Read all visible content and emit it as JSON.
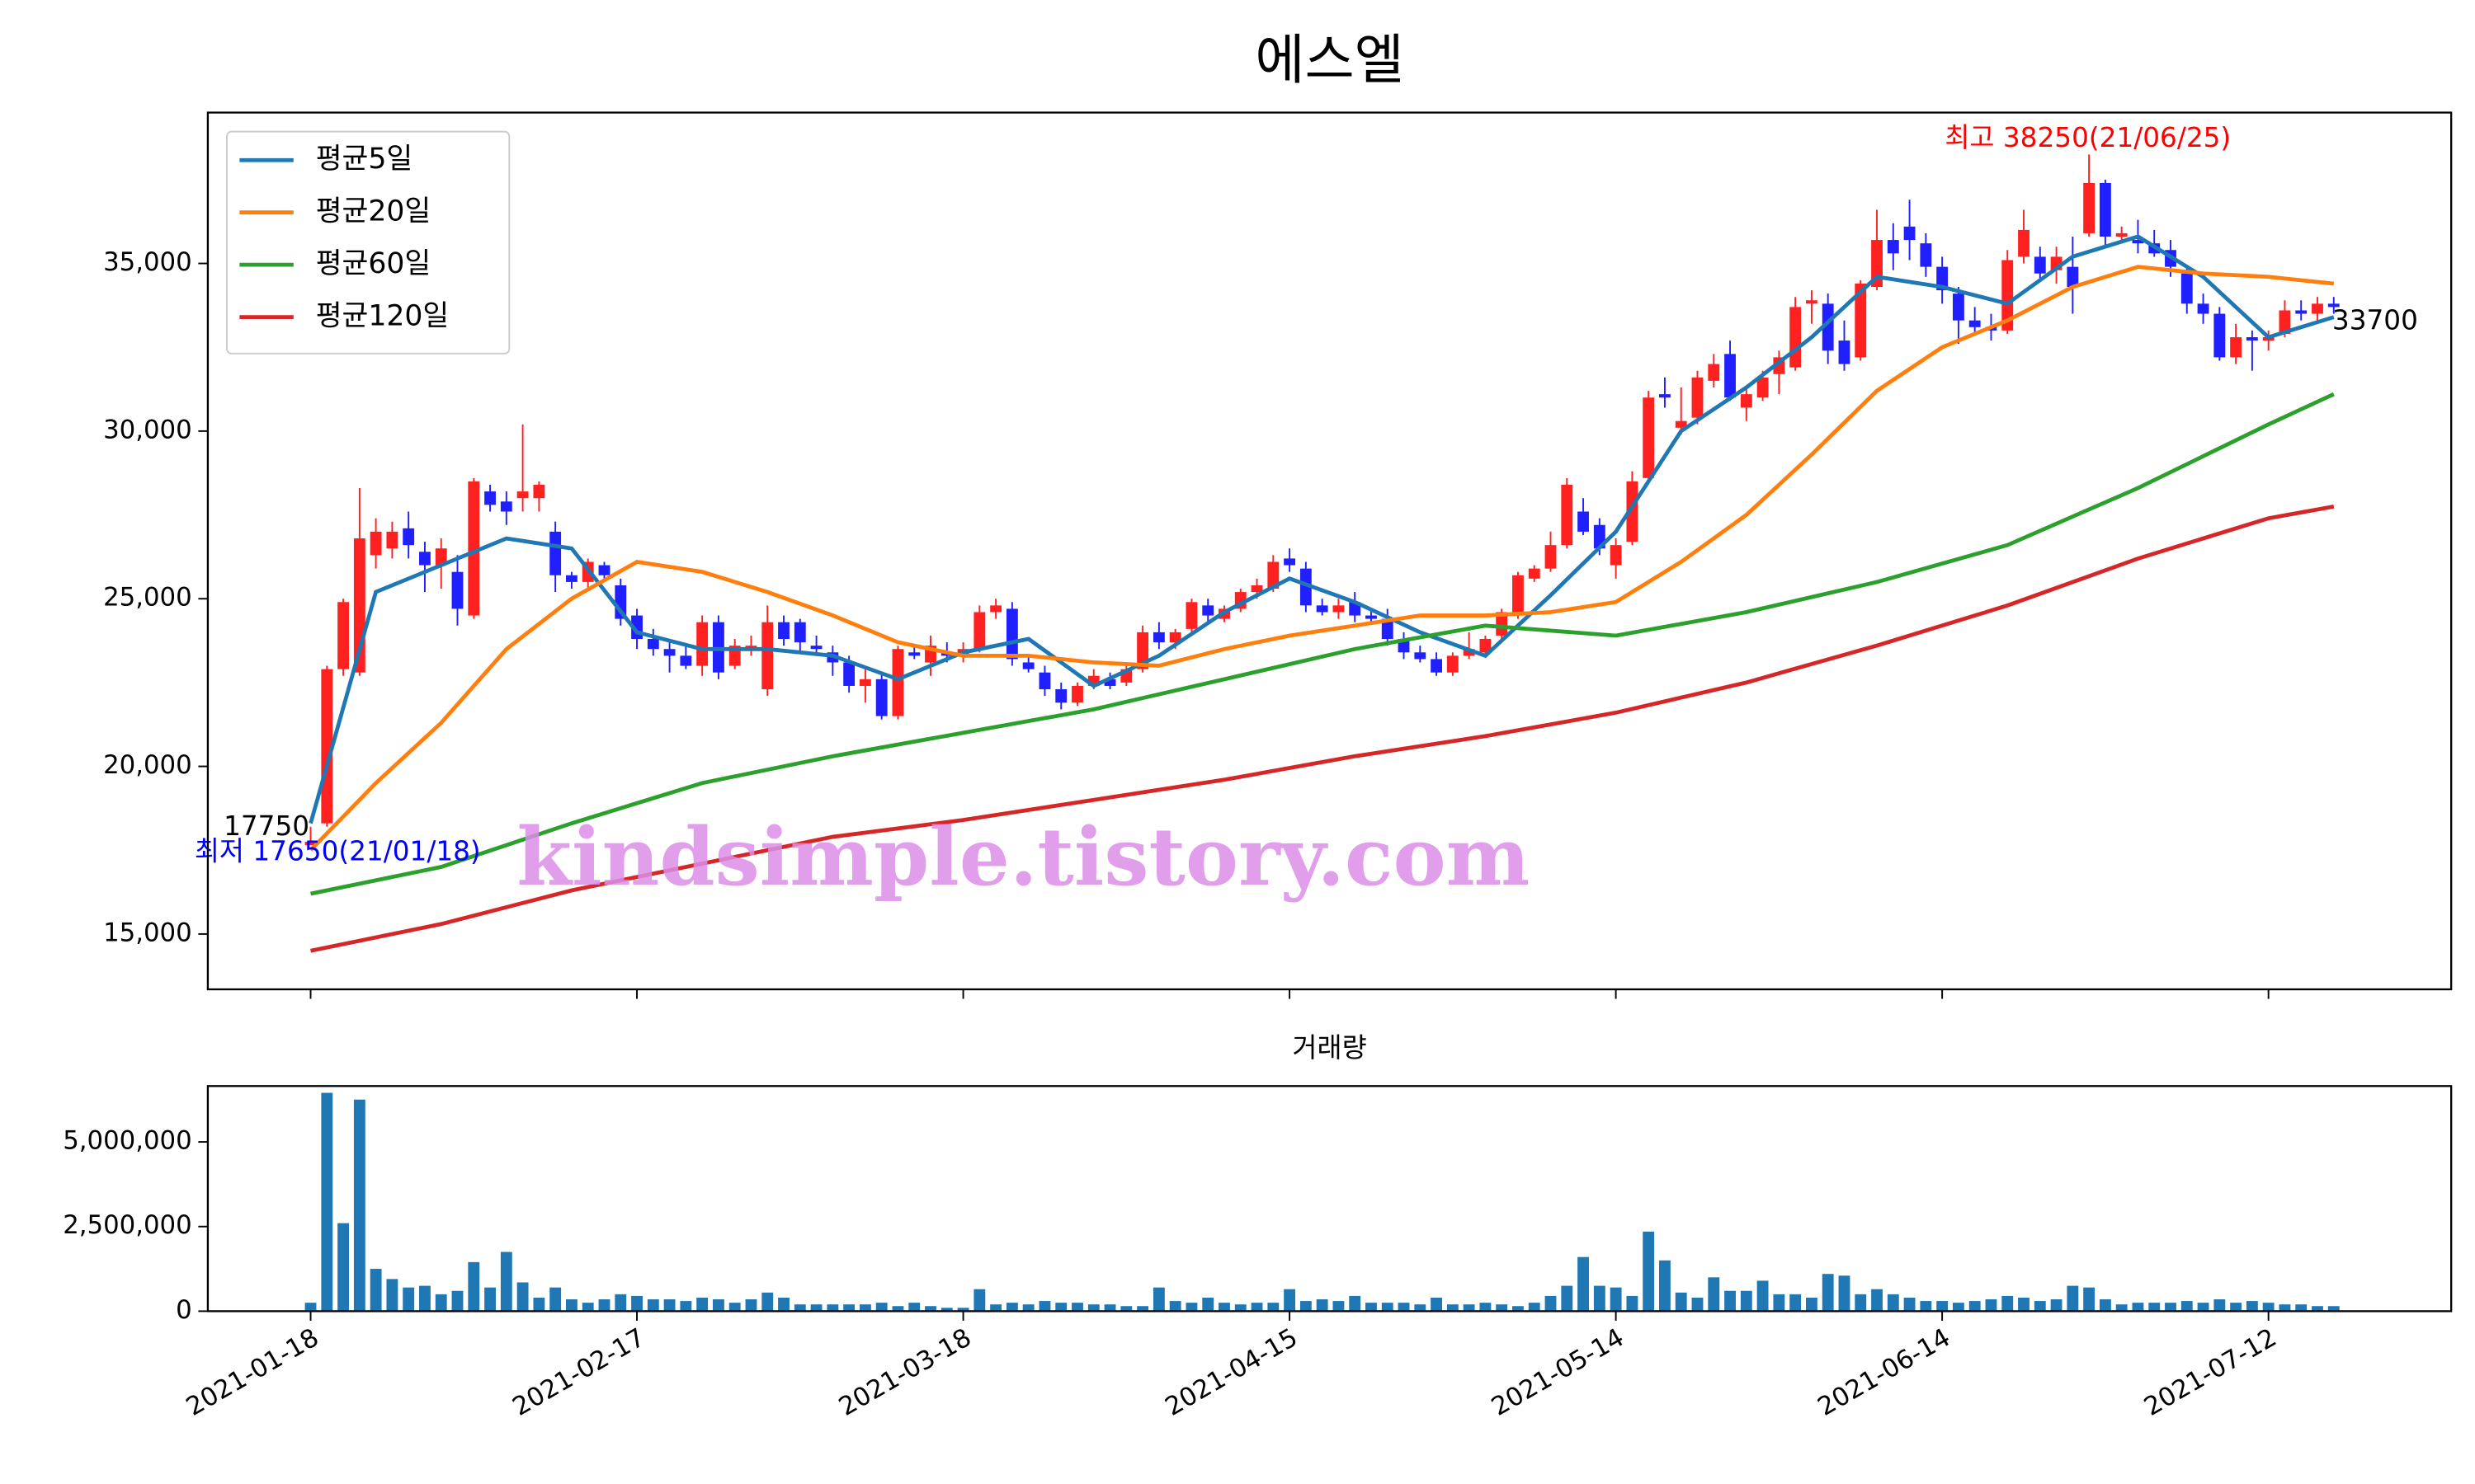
{
  "chart_data": [
    {
      "type": "candlestick",
      "title": "에스엘",
      "open": [
        17650,
        18300,
        22900,
        22800,
        26300,
        26500,
        27100,
        26400,
        26000,
        25800,
        24500,
        28200,
        27900,
        28000,
        28000,
        27000,
        25700,
        25500,
        26000,
        25400,
        24500,
        23800,
        23500,
        23300,
        23000,
        24300,
        23000,
        23500,
        22300,
        24300,
        24300,
        23600,
        23400,
        23100,
        22400,
        22600,
        21500,
        23400,
        23100,
        23400,
        23300,
        23500,
        24600,
        24700,
        23100,
        22800,
        22300,
        21900,
        22400,
        22600,
        22500,
        22900,
        24000,
        23700,
        24100,
        24800,
        24400,
        24700,
        25200,
        25300,
        26200,
        25900,
        24800,
        24600,
        24900,
        24500,
        24400,
        23800,
        23400,
        23200,
        22800,
        23300,
        23400,
        23900,
        24500,
        25600,
        25900,
        26600,
        27600,
        27200,
        26000,
        26700,
        28600,
        31100,
        30100,
        30400,
        31500,
        32300,
        30700,
        31000,
        31700,
        31900,
        33800,
        33800,
        32700,
        32200,
        34300,
        35700,
        36100,
        35600,
        34900,
        34100,
        33300,
        33100,
        33000,
        35200,
        35200,
        34800,
        34900,
        35900,
        37400,
        35800,
        35700,
        35600,
        35400,
        34700,
        33800,
        33500,
        32200,
        32800,
        32700,
        32900,
        33600,
        33500,
        33800
      ],
      "high": [
        18200,
        23000,
        25000,
        28300,
        27400,
        27300,
        27600,
        26700,
        26800,
        26300,
        28600,
        28400,
        28200,
        30200,
        28500,
        27300,
        25800,
        26200,
        26100,
        25600,
        24700,
        24100,
        23800,
        23600,
        24500,
        24500,
        23800,
        23900,
        24800,
        24500,
        24400,
        23900,
        23600,
        23300,
        23000,
        22800,
        23600,
        23600,
        23900,
        23700,
        23700,
        24800,
        25000,
        24900,
        23300,
        23000,
        22500,
        22500,
        22900,
        22800,
        23000,
        24200,
        24300,
        24100,
        25000,
        25000,
        24800,
        25300,
        25600,
        26300,
        26500,
        26100,
        25000,
        25000,
        25200,
        24700,
        24700,
        24000,
        23600,
        23400,
        23400,
        24000,
        23900,
        24700,
        25800,
        26000,
        27000,
        28600,
        28000,
        27400,
        26800,
        28800,
        31200,
        31600,
        31300,
        31800,
        32300,
        32700,
        31300,
        31800,
        32400,
        34000,
        34200,
        34100,
        33300,
        34500,
        36600,
        36200,
        36900,
        35900,
        35200,
        34300,
        33700,
        33500,
        35400,
        36600,
        35500,
        35500,
        35800,
        38250,
        37500,
        36100,
        36300,
        36000,
        35700,
        34900,
        34100,
        33700,
        33200,
        33000,
        33000,
        33900,
        33900,
        34000,
        34000
      ],
      "low": [
        17650,
        18200,
        22700,
        22700,
        25900,
        26200,
        26200,
        25200,
        25300,
        24200,
        24400,
        27600,
        27200,
        27600,
        27600,
        25200,
        25300,
        25300,
        25600,
        24200,
        23500,
        23300,
        22800,
        22900,
        22700,
        22600,
        22900,
        23300,
        22100,
        23600,
        23400,
        23300,
        22700,
        22200,
        21900,
        21400,
        21400,
        23200,
        22700,
        23100,
        23100,
        23400,
        24400,
        23000,
        22800,
        22100,
        21700,
        21800,
        22300,
        22300,
        22400,
        22800,
        23500,
        23500,
        24000,
        24300,
        24300,
        24600,
        25000,
        25200,
        25800,
        24600,
        24500,
        24400,
        24300,
        24300,
        23600,
        23200,
        23100,
        22700,
        22700,
        23200,
        23300,
        23800,
        24400,
        25500,
        25800,
        26500,
        26900,
        26300,
        25600,
        26600,
        28500,
        30700,
        29900,
        30200,
        31300,
        30900,
        30300,
        30900,
        31100,
        31800,
        33200,
        32000,
        31800,
        32100,
        34200,
        34800,
        35100,
        34600,
        33800,
        32600,
        32900,
        32700,
        32900,
        35000,
        34500,
        34400,
        33500,
        35800,
        35500,
        35600,
        35300,
        35200,
        34600,
        33500,
        33200,
        32100,
        32000,
        31800,
        32400,
        32800,
        33300,
        33300,
        33500
      ],
      "close": [
        17750,
        22900,
        24900,
        26800,
        27000,
        27000,
        26600,
        26000,
        26500,
        24700,
        28500,
        27800,
        27600,
        28200,
        28400,
        25700,
        25500,
        26100,
        25700,
        24400,
        23800,
        23500,
        23300,
        23000,
        24300,
        22800,
        23600,
        23600,
        24300,
        23800,
        23700,
        23500,
        23100,
        22400,
        22600,
        21500,
        23500,
        23300,
        23600,
        23300,
        23500,
        24600,
        24800,
        23200,
        22900,
        22300,
        21900,
        22400,
        22700,
        22400,
        22900,
        24000,
        23700,
        24000,
        24900,
        24500,
        24700,
        25200,
        25400,
        26100,
        26000,
        24800,
        24600,
        24800,
        24500,
        24400,
        23800,
        23400,
        23200,
        22800,
        23300,
        23500,
        23800,
        24600,
        25700,
        25900,
        26600,
        28400,
        27000,
        26500,
        26600,
        28500,
        31000,
        31000,
        30300,
        31600,
        32000,
        31000,
        31100,
        31600,
        32200,
        33700,
        33900,
        32400,
        32000,
        34400,
        35700,
        35300,
        35700,
        34900,
        34200,
        33300,
        33100,
        33000,
        35100,
        36000,
        34700,
        35200,
        34300,
        37400,
        35800,
        35900,
        35600,
        35300,
        34900,
        33800,
        33500,
        32200,
        32800,
        32700,
        32800,
        33600,
        33500,
        33800,
        33700
      ],
      "up_color": "#ff2020",
      "down_color": "#2020ff",
      "series": [
        {
          "name": "평균5일",
          "color": "#1f77b4",
          "x": [
            0,
            4,
            8,
            12,
            16,
            20,
            24,
            28,
            32,
            36,
            40,
            44,
            48,
            52,
            56,
            60,
            64,
            68,
            72,
            76,
            80,
            84,
            88,
            92,
            96,
            100,
            104,
            108,
            112,
            116,
            120,
            124
          ],
          "values": [
            18300,
            25200,
            26000,
            26800,
            26500,
            24000,
            23500,
            23500,
            23300,
            22600,
            23400,
            23800,
            22400,
            23300,
            24600,
            25600,
            24900,
            24000,
            23300,
            25100,
            27000,
            30000,
            31300,
            32800,
            34600,
            34300,
            33800,
            35200,
            35800,
            34600,
            32800,
            33400
          ]
        },
        {
          "name": "평균20일",
          "color": "#ff7f0e",
          "x": [
            0,
            4,
            8,
            12,
            16,
            20,
            24,
            28,
            32,
            36,
            40,
            44,
            48,
            52,
            56,
            60,
            64,
            68,
            72,
            76,
            80,
            84,
            88,
            92,
            96,
            100,
            104,
            108,
            112,
            116,
            120,
            124
          ],
          "values": [
            17500,
            19500,
            21300,
            23500,
            25000,
            26100,
            25800,
            25200,
            24500,
            23700,
            23300,
            23300,
            23100,
            23000,
            23500,
            23900,
            24200,
            24500,
            24500,
            24600,
            24900,
            26100,
            27500,
            29300,
            31200,
            32500,
            33300,
            34300,
            34900,
            34700,
            34600,
            34400
          ]
        },
        {
          "name": "평균60일",
          "color": "#2ca02c",
          "x": [
            0,
            8,
            16,
            24,
            32,
            40,
            48,
            56,
            64,
            72,
            80,
            88,
            96,
            104,
            112,
            120,
            124
          ],
          "values": [
            16200,
            17000,
            18300,
            19500,
            20300,
            21000,
            21700,
            22600,
            23500,
            24200,
            23900,
            24600,
            25500,
            26600,
            28300,
            30200,
            31100
          ]
        },
        {
          "name": "평균120일",
          "color": "#d62728",
          "x": [
            0,
            8,
            16,
            24,
            32,
            40,
            48,
            56,
            64,
            72,
            80,
            88,
            96,
            104,
            112,
            120,
            124
          ],
          "values": [
            14500,
            15300,
            16300,
            17100,
            17900,
            18400,
            19000,
            19600,
            20300,
            20900,
            21600,
            22500,
            23600,
            24800,
            26200,
            27400,
            27750
          ]
        }
      ],
      "xlim": [
        -6.3,
        131.2
      ],
      "xticks": [
        0,
        20,
        40,
        60,
        80,
        100,
        120
      ],
      "ylim": [
        13350,
        39500
      ],
      "yticks": [
        {
          "value": 15000,
          "label": "15,000"
        },
        {
          "value": 20000,
          "label": "20,000"
        },
        {
          "value": 25000,
          "label": "25,000"
        },
        {
          "value": 30000,
          "label": "30,000"
        },
        {
          "value": 35000,
          "label": "35,000"
        }
      ],
      "legend": "upper left",
      "annotations": [
        {
          "text": "최고 38250(21/06/25)",
          "color": "#ff0000"
        },
        {
          "text": "최저 17650(21/01/18)",
          "color": "#0000ff"
        },
        {
          "text": "17750",
          "color": "#000000"
        },
        {
          "text": "33700",
          "color": "#000000"
        }
      ],
      "watermark": "kindsimple.tistory.com"
    },
    {
      "type": "bar",
      "title": "거래량",
      "color": "#1f77b4",
      "values": [
        250000,
        6450000,
        2600000,
        6250000,
        1250000,
        950000,
        700000,
        750000,
        500000,
        600000,
        1450000,
        700000,
        1750000,
        850000,
        400000,
        700000,
        350000,
        250000,
        350000,
        500000,
        450000,
        350000,
        350000,
        300000,
        400000,
        350000,
        250000,
        350000,
        550000,
        400000,
        200000,
        200000,
        200000,
        200000,
        200000,
        250000,
        150000,
        250000,
        150000,
        100000,
        100000,
        650000,
        200000,
        250000,
        200000,
        300000,
        250000,
        250000,
        200000,
        200000,
        150000,
        150000,
        700000,
        300000,
        250000,
        400000,
        250000,
        200000,
        250000,
        250000,
        650000,
        300000,
        350000,
        300000,
        450000,
        250000,
        250000,
        250000,
        200000,
        400000,
        200000,
        200000,
        250000,
        200000,
        150000,
        250000,
        450000,
        750000,
        1600000,
        750000,
        700000,
        450000,
        2350000,
        1500000,
        550000,
        400000,
        1000000,
        600000,
        600000,
        900000,
        500000,
        500000,
        400000,
        1100000,
        1050000,
        500000,
        650000,
        500000,
        400000,
        300000,
        300000,
        250000,
        300000,
        350000,
        450000,
        400000,
        300000,
        350000,
        750000,
        700000,
        350000,
        200000,
        250000,
        250000,
        250000,
        300000,
        250000,
        350000,
        250000,
        300000,
        250000,
        200000,
        200000,
        150000,
        150000
      ],
      "xlim": [
        -6.3,
        131.2
      ],
      "xticks": [
        {
          "value": 0,
          "label": "2021-01-18"
        },
        {
          "value": 20,
          "label": "2021-02-17"
        },
        {
          "value": 40,
          "label": "2021-03-18"
        },
        {
          "value": 60,
          "label": "2021-04-15"
        },
        {
          "value": 80,
          "label": "2021-05-14"
        },
        {
          "value": 100,
          "label": "2021-06-14"
        },
        {
          "value": 120,
          "label": "2021-07-12"
        }
      ],
      "ylim": [
        0,
        6650000
      ],
      "yticks": [
        0,
        {
          "value": 2500000,
          "label": "2,500,000"
        },
        {
          "value": 5000000,
          "label": "5,000,000"
        }
      ]
    }
  ]
}
